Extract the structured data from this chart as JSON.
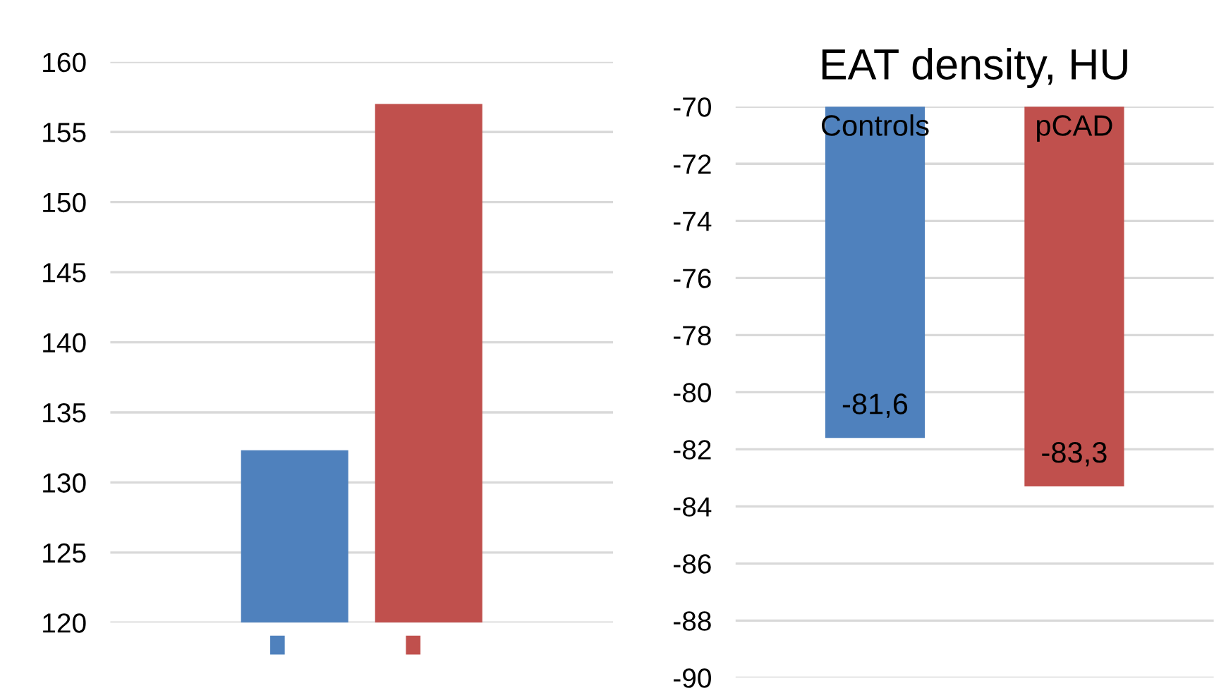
{
  "chart_data": [
    {
      "type": "bar",
      "categories": [
        null
      ],
      "series": [
        {
          "color": "#4f81bd",
          "values": [
            132.3
          ]
        },
        {
          "color": "#c0504d",
          "values": [
            157
          ]
        }
      ],
      "ylim": [
        120,
        160
      ],
      "yticks": [
        120,
        125,
        130,
        135,
        140,
        145,
        150,
        155,
        160
      ],
      "grid": "y"
    },
    {
      "type": "bar",
      "title": "EAT density, HU",
      "categories": [
        "Controls",
        "pCAD"
      ],
      "values": [
        -81.6,
        -83.3
      ],
      "colors": [
        "#4f81bd",
        "#c0504d"
      ],
      "value_labels": [
        "-81,6",
        "-83,3"
      ],
      "ylim": [
        -90,
        -70
      ],
      "yticks": [
        -90,
        -88,
        -86,
        -84,
        -82,
        -80,
        -78,
        -76,
        -74,
        -72,
        -70
      ],
      "grid": "y"
    }
  ]
}
